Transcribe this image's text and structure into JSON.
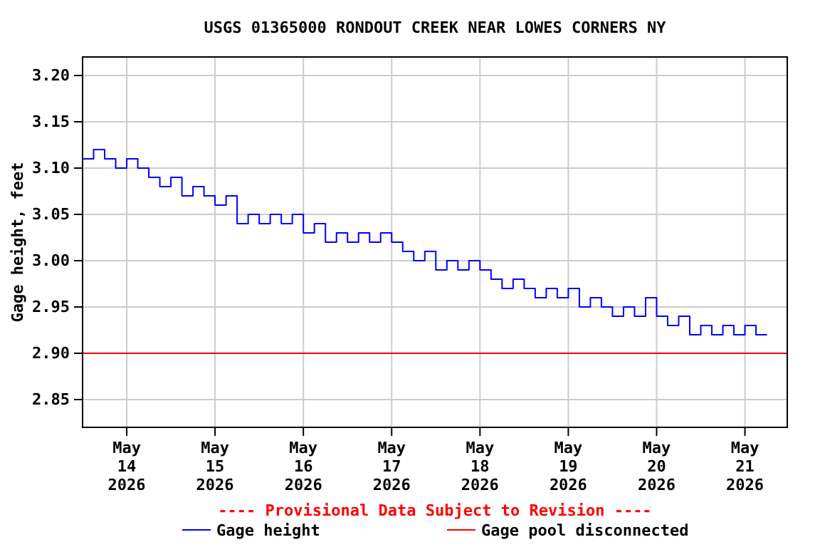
{
  "chart_data": {
    "type": "step",
    "title": "USGS 01365000 RONDOUT CREEK NEAR LOWES CORNERS NY",
    "ylabel": "Gage height, feet",
    "annotations": [
      "---- Provisional Data Subject to Revision ----"
    ],
    "xlim": [
      "2026-05-13T12:00",
      "2026-05-21T11:30"
    ],
    "ylim": [
      2.82,
      3.22
    ],
    "xticks": [
      {
        "value": "2026-05-14",
        "label": "May\n14\n2026"
      },
      {
        "value": "2026-05-15",
        "label": "May\n15\n2026"
      },
      {
        "value": "2026-05-16",
        "label": "May\n16\n2026"
      },
      {
        "value": "2026-05-17",
        "label": "May\n17\n2026"
      },
      {
        "value": "2026-05-18",
        "label": "May\n18\n2026"
      },
      {
        "value": "2026-05-19",
        "label": "May\n19\n2026"
      },
      {
        "value": "2026-05-20",
        "label": "May\n20\n2026"
      },
      {
        "value": "2026-05-21",
        "label": "May\n21\n2026"
      }
    ],
    "yticks": [
      {
        "value": 2.85,
        "label": "2.85"
      },
      {
        "value": 2.9,
        "label": "2.90"
      },
      {
        "value": 2.95,
        "label": "2.95"
      },
      {
        "value": 3.0,
        "label": "3.00"
      },
      {
        "value": 3.05,
        "label": "3.05"
      },
      {
        "value": 3.1,
        "label": "3.10"
      },
      {
        "value": 3.15,
        "label": "3.15"
      },
      {
        "value": 3.2,
        "label": "3.20"
      }
    ],
    "grid": true,
    "legend": "bottom",
    "series": [
      {
        "name": "Gage height",
        "color": "#0000ff",
        "x": [
          "2026-05-13T12:00",
          "2026-05-13T15:00",
          "2026-05-13T18:00",
          "2026-05-13T21:00",
          "2026-05-14T00:00",
          "2026-05-14T03:00",
          "2026-05-14T06:00",
          "2026-05-14T09:00",
          "2026-05-14T12:00",
          "2026-05-14T15:00",
          "2026-05-14T18:00",
          "2026-05-14T21:00",
          "2026-05-15T00:00",
          "2026-05-15T03:00",
          "2026-05-15T06:00",
          "2026-05-15T09:00",
          "2026-05-15T12:00",
          "2026-05-15T15:00",
          "2026-05-15T18:00",
          "2026-05-15T21:00",
          "2026-05-16T00:00",
          "2026-05-16T03:00",
          "2026-05-16T06:00",
          "2026-05-16T09:00",
          "2026-05-16T12:00",
          "2026-05-16T15:00",
          "2026-05-16T18:00",
          "2026-05-16T21:00",
          "2026-05-17T00:00",
          "2026-05-17T03:00",
          "2026-05-17T06:00",
          "2026-05-17T09:00",
          "2026-05-17T12:00",
          "2026-05-17T15:00",
          "2026-05-17T18:00",
          "2026-05-17T21:00",
          "2026-05-18T00:00",
          "2026-05-18T03:00",
          "2026-05-18T06:00",
          "2026-05-18T09:00",
          "2026-05-18T12:00",
          "2026-05-18T15:00",
          "2026-05-18T18:00",
          "2026-05-18T21:00",
          "2026-05-19T00:00",
          "2026-05-19T03:00",
          "2026-05-19T06:00",
          "2026-05-19T09:00",
          "2026-05-19T12:00",
          "2026-05-19T15:00",
          "2026-05-19T18:00",
          "2026-05-19T21:00",
          "2026-05-20T00:00",
          "2026-05-20T03:00",
          "2026-05-20T06:00",
          "2026-05-20T09:00",
          "2026-05-20T12:00",
          "2026-05-20T15:00",
          "2026-05-20T18:00",
          "2026-05-20T21:00",
          "2026-05-21T00:00",
          "2026-05-21T03:00",
          "2026-05-21T06:00"
        ],
        "values": [
          3.11,
          3.12,
          3.11,
          3.1,
          3.11,
          3.1,
          3.09,
          3.08,
          3.09,
          3.07,
          3.08,
          3.07,
          3.06,
          3.07,
          3.04,
          3.05,
          3.04,
          3.05,
          3.04,
          3.05,
          3.03,
          3.04,
          3.02,
          3.03,
          3.02,
          3.03,
          3.02,
          3.03,
          3.02,
          3.01,
          3.0,
          3.01,
          2.99,
          3.0,
          2.99,
          3.0,
          2.99,
          2.98,
          2.97,
          2.98,
          2.97,
          2.96,
          2.97,
          2.96,
          2.97,
          2.95,
          2.96,
          2.95,
          2.94,
          2.95,
          2.94,
          2.96,
          2.94,
          2.93,
          2.94,
          2.92,
          2.93,
          2.92,
          2.93,
          2.92,
          2.93,
          2.92,
          2.92
        ]
      },
      {
        "name": "Gage pool disconnected",
        "color": "#ff0000",
        "type": "line",
        "x": [
          "2026-05-13T12:00",
          "2026-05-21T11:30"
        ],
        "values": [
          2.9,
          2.9
        ]
      }
    ]
  }
}
